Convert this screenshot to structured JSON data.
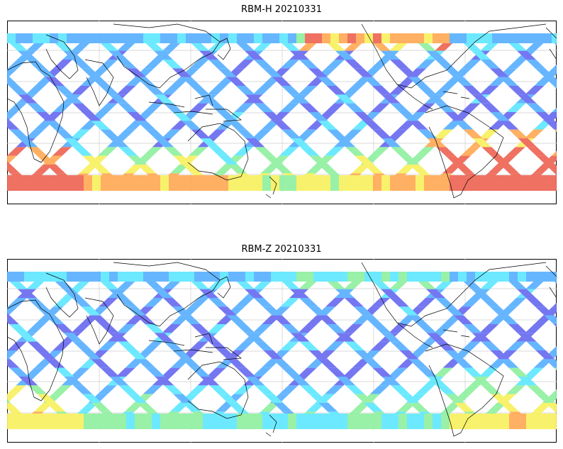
{
  "panels": [
    {
      "id": "top",
      "title": "RBM-H 20210331",
      "hot_south": 1.0,
      "hot_north_pacific": 0.75
    },
    {
      "id": "bottom",
      "title": "RBM-Z 20210331",
      "hot_south": 0.55,
      "hot_north_pacific": 0.25
    }
  ],
  "colors": {
    "low": "#6a6cf0",
    "mid1": "#5ab0ff",
    "mid2": "#60e8ff",
    "mid3": "#90f0a0",
    "mid4": "#f8f060",
    "high1": "#ffaa55",
    "high2": "#ee6655",
    "coast": "#000000",
    "grid": "#cccccc"
  }
}
